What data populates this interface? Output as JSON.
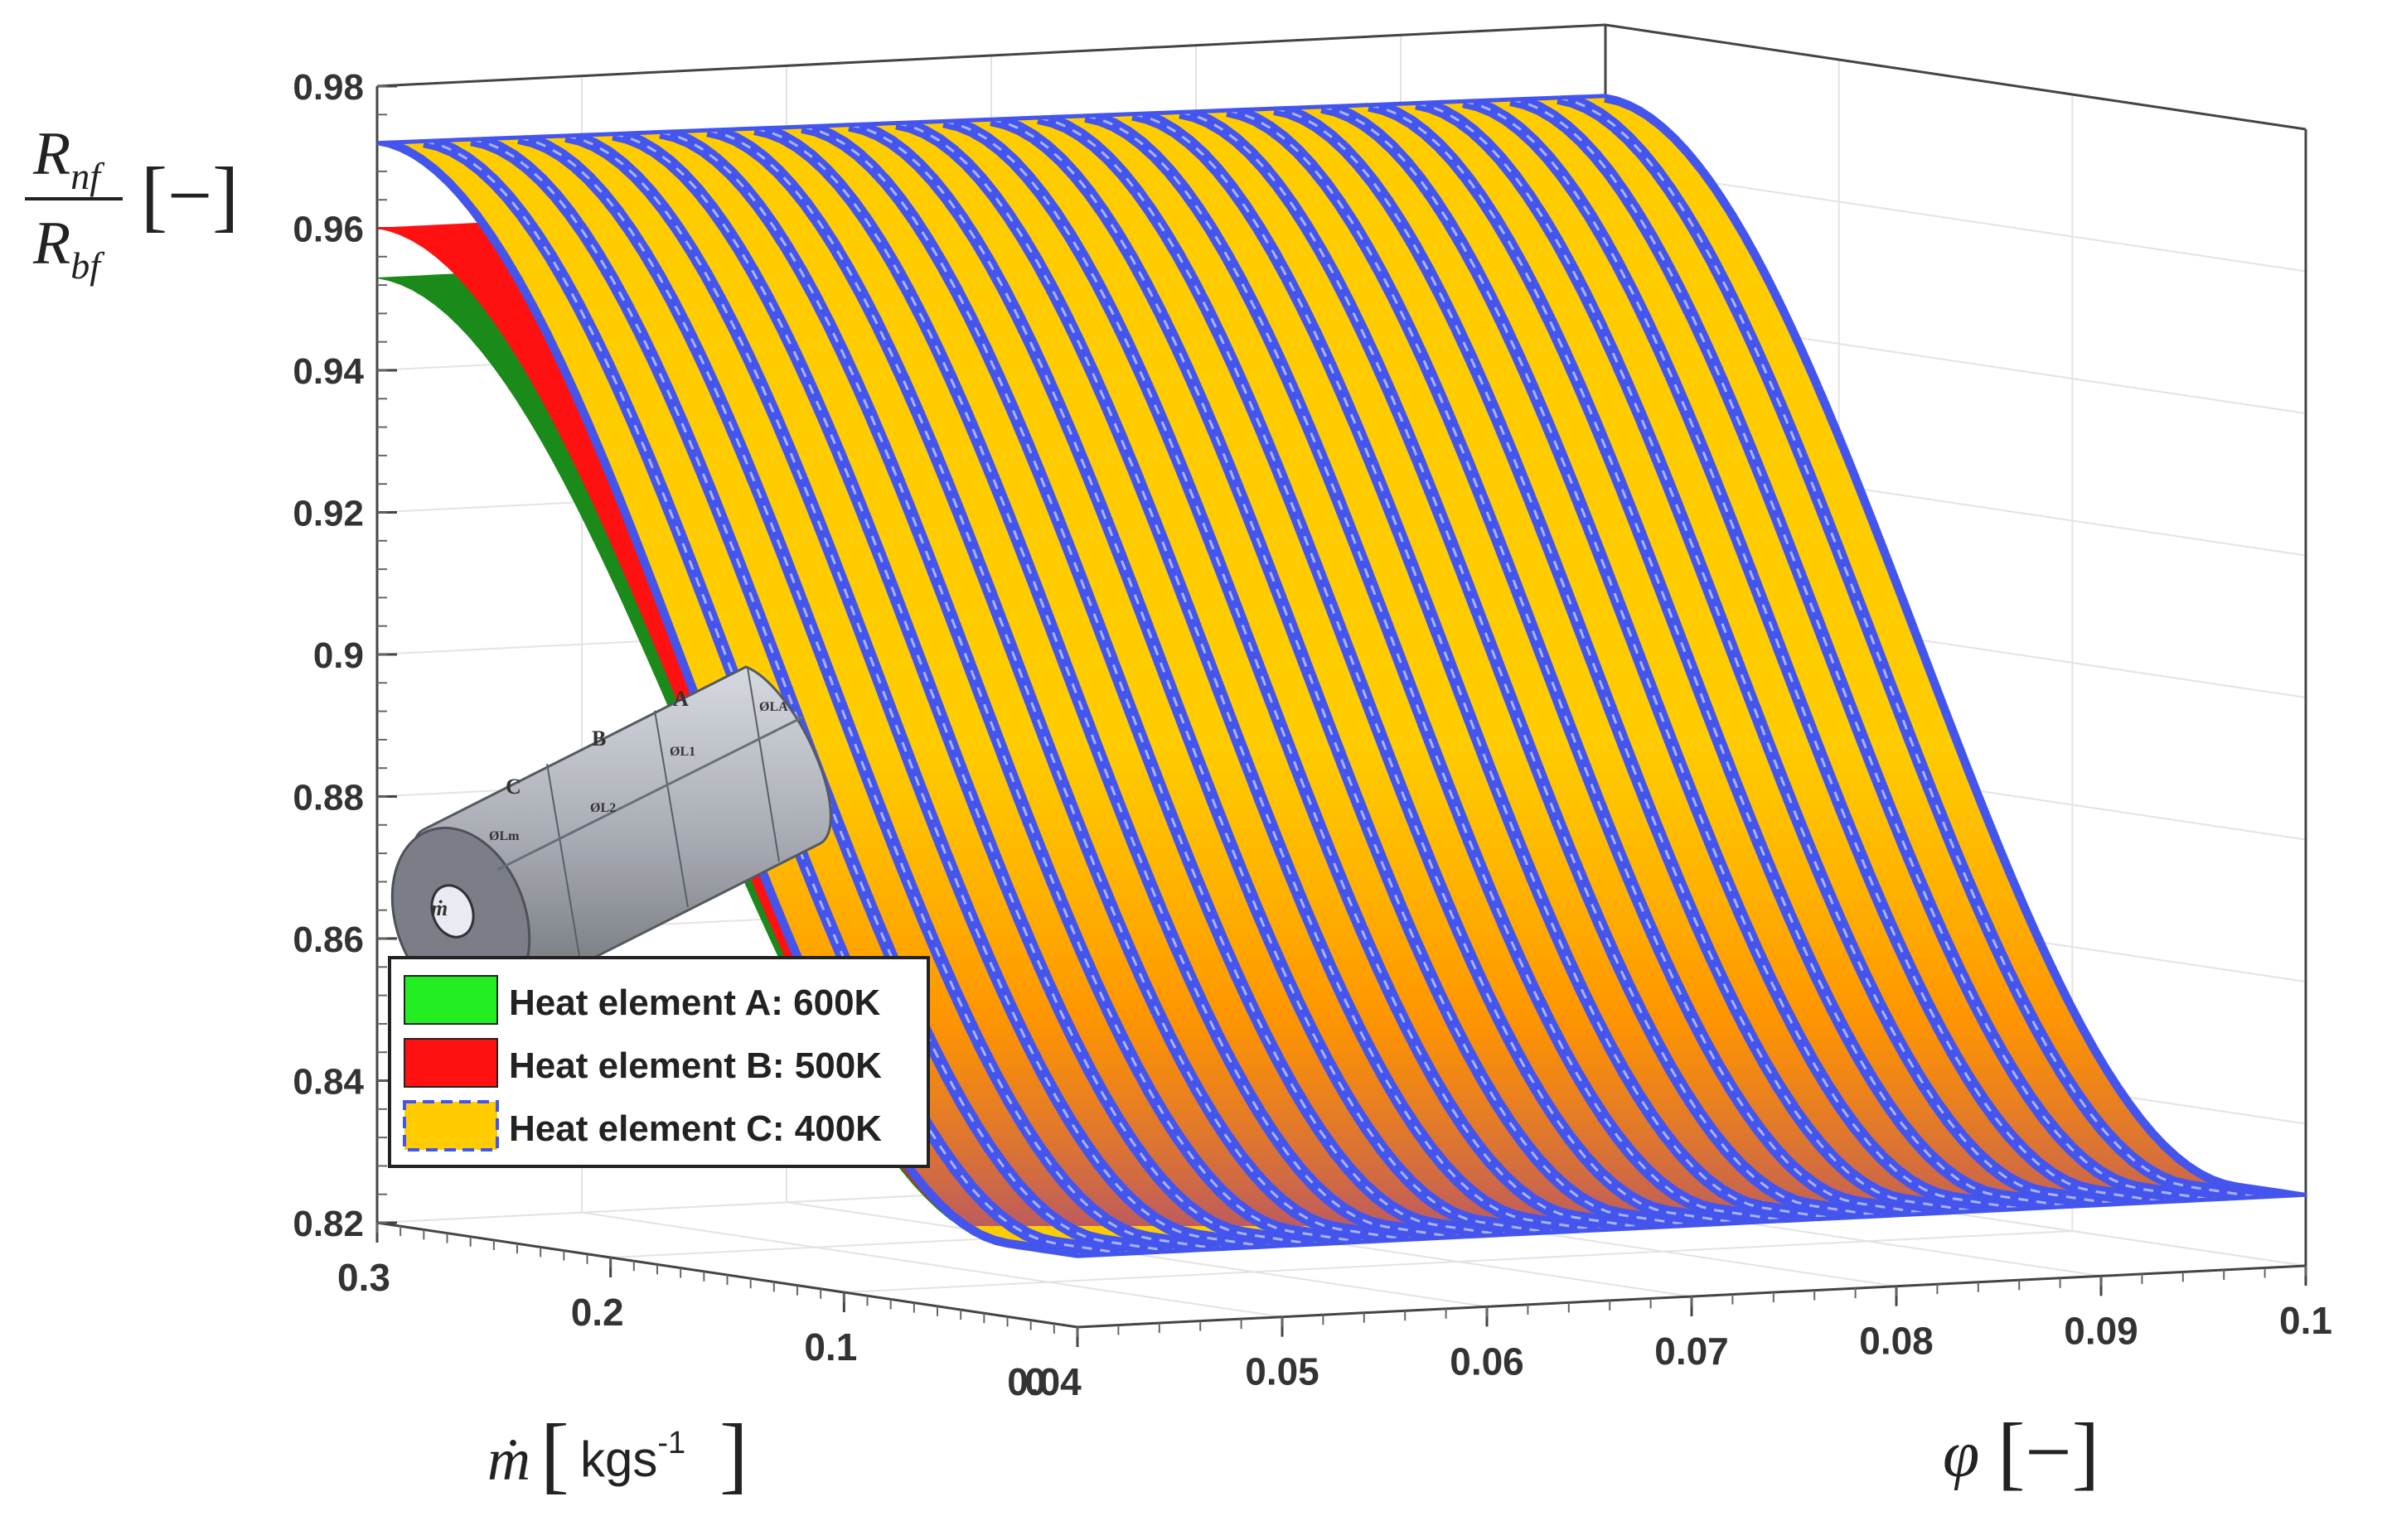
{
  "chart_data": {
    "type": "surface",
    "zlabel": {
      "num": "R",
      "num_sub": "nf",
      "den": "R",
      "den_sub": "bf",
      "unit": "[−]"
    },
    "xlabel": {
      "symbol": "ṁ",
      "unit_open": "[",
      "unit": "kgs",
      "unit_exp": "-1",
      "unit_close": "]"
    },
    "ylabel": {
      "symbol": "φ",
      "unit": "[−]"
    },
    "x_axis": {
      "name": "mass_flow",
      "range": [
        0,
        0.3
      ],
      "ticks": [
        "0.3",
        "0.2",
        "0.1",
        "0"
      ]
    },
    "y_axis": {
      "name": "phi",
      "range": [
        0.04,
        0.1
      ],
      "ticks": [
        "0.04",
        "0.05",
        "0.06",
        "0.07",
        "0.08",
        "0.09",
        "0.1"
      ]
    },
    "z_axis": {
      "range": [
        0.82,
        0.98
      ],
      "ticks": [
        "0.98",
        "0.96",
        "0.94",
        "0.92",
        "0.9",
        "0.88",
        "0.86",
        "0.84",
        "0.82"
      ]
    },
    "grid": true,
    "legend_position": "bottom-left",
    "series": [
      {
        "name": "Heat element A: 600K",
        "color": "#1a8a1a",
        "legend_color": "#22ee22",
        "edge_at_max_flow": [
          [
            0.04,
            0.953
          ],
          [
            0.1,
            0.953
          ]
        ],
        "edge_at_min_flow": [
          [
            0.04,
            0.83
          ],
          [
            0.1,
            0.83
          ]
        ]
      },
      {
        "name": "Heat element B: 500K",
        "color": "#ff1111",
        "legend_color": "#ff1111",
        "edge_at_max_flow": [
          [
            0.04,
            0.96
          ],
          [
            0.1,
            0.96
          ]
        ],
        "edge_at_min_flow": [
          [
            0.04,
            0.83
          ],
          [
            0.1,
            0.83
          ]
        ]
      },
      {
        "name": "Heat element C: 400K",
        "color": "#ffcc00",
        "legend_color": "#ffcc00",
        "edge_color": "#4455ee",
        "edge_at_max_flow": [
          [
            0.04,
            0.972
          ],
          [
            0.1,
            0.97
          ]
        ],
        "edge_at_min_flow": [
          [
            0.04,
            0.83
          ],
          [
            0.1,
            0.83
          ]
        ]
      }
    ]
  },
  "inset": {
    "labels": [
      "A",
      "B",
      "C"
    ],
    "flow_label": "ṁ",
    "dim_labels": [
      "ØLA",
      "ØL1",
      "ØL2",
      "ØLm"
    ]
  }
}
